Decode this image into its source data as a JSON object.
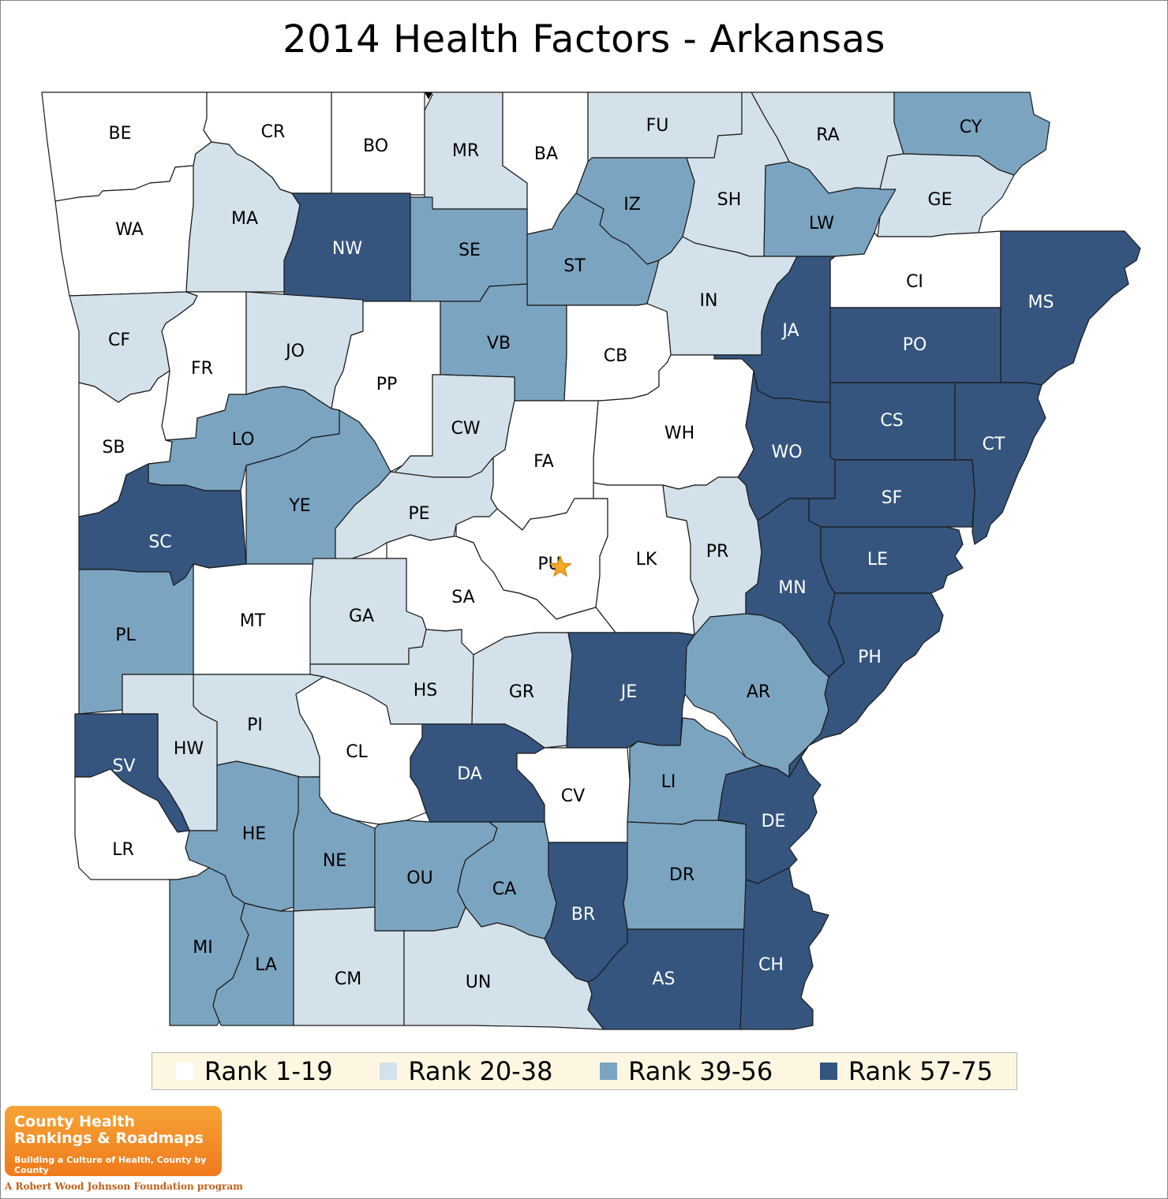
{
  "title": "2014 Health Factors - Arkansas",
  "colors": {
    "rank_1_19": "#ffffff",
    "rank_20_38": "#d3e1ea",
    "rank_39_56": "#7ba4c0",
    "rank_57_75": "#35557f"
  },
  "legend": [
    {
      "label": "Rank 1-19",
      "class": "rank_1_19"
    },
    {
      "label": "Rank 20-38",
      "class": "rank_20_38"
    },
    {
      "label": "Rank 39-56",
      "class": "rank_39_56"
    },
    {
      "label": "Rank 57-75",
      "class": "rank_57_75"
    }
  ],
  "counties": [
    {
      "abbr": "BE",
      "rank_group": "rank_1_19"
    },
    {
      "abbr": "CR",
      "rank_group": "rank_1_19"
    },
    {
      "abbr": "BO",
      "rank_group": "rank_1_19"
    },
    {
      "abbr": "MR",
      "rank_group": "rank_20_38"
    },
    {
      "abbr": "BA",
      "rank_group": "rank_1_19"
    },
    {
      "abbr": "FU",
      "rank_group": "rank_20_38"
    },
    {
      "abbr": "RA",
      "rank_group": "rank_20_38"
    },
    {
      "abbr": "CY",
      "rank_group": "rank_39_56"
    },
    {
      "abbr": "WA",
      "rank_group": "rank_1_19"
    },
    {
      "abbr": "MA",
      "rank_group": "rank_20_38"
    },
    {
      "abbr": "NW",
      "rank_group": "rank_57_75"
    },
    {
      "abbr": "SE",
      "rank_group": "rank_39_56"
    },
    {
      "abbr": "IZ",
      "rank_group": "rank_39_56"
    },
    {
      "abbr": "SH",
      "rank_group": "rank_20_38"
    },
    {
      "abbr": "LW",
      "rank_group": "rank_39_56"
    },
    {
      "abbr": "GE",
      "rank_group": "rank_20_38"
    },
    {
      "abbr": "ST",
      "rank_group": "rank_39_56"
    },
    {
      "abbr": "CI",
      "rank_group": "rank_1_19"
    },
    {
      "abbr": "MS",
      "rank_group": "rank_57_75"
    },
    {
      "abbr": "IN",
      "rank_group": "rank_20_38"
    },
    {
      "abbr": "JA",
      "rank_group": "rank_57_75"
    },
    {
      "abbr": "CF",
      "rank_group": "rank_20_38"
    },
    {
      "abbr": "FR",
      "rank_group": "rank_1_19"
    },
    {
      "abbr": "JO",
      "rank_group": "rank_20_38"
    },
    {
      "abbr": "PP",
      "rank_group": "rank_1_19"
    },
    {
      "abbr": "VB",
      "rank_group": "rank_39_56"
    },
    {
      "abbr": "CB",
      "rank_group": "rank_1_19"
    },
    {
      "abbr": "PO",
      "rank_group": "rank_57_75"
    },
    {
      "abbr": "CW",
      "rank_group": "rank_20_38"
    },
    {
      "abbr": "WH",
      "rank_group": "rank_1_19"
    },
    {
      "abbr": "CS",
      "rank_group": "rank_57_75"
    },
    {
      "abbr": "CT",
      "rank_group": "rank_57_75"
    },
    {
      "abbr": "SB",
      "rank_group": "rank_1_19"
    },
    {
      "abbr": "LO",
      "rank_group": "rank_39_56"
    },
    {
      "abbr": "FA",
      "rank_group": "rank_1_19"
    },
    {
      "abbr": "WO",
      "rank_group": "rank_57_75"
    },
    {
      "abbr": "YE",
      "rank_group": "rank_39_56"
    },
    {
      "abbr": "SF",
      "rank_group": "rank_57_75"
    },
    {
      "abbr": "PE",
      "rank_group": "rank_20_38"
    },
    {
      "abbr": "SC",
      "rank_group": "rank_57_75"
    },
    {
      "abbr": "PU",
      "rank_group": "rank_1_19"
    },
    {
      "abbr": "LK",
      "rank_group": "rank_1_19"
    },
    {
      "abbr": "PR",
      "rank_group": "rank_20_38"
    },
    {
      "abbr": "LE",
      "rank_group": "rank_57_75"
    },
    {
      "abbr": "MN",
      "rank_group": "rank_57_75"
    },
    {
      "abbr": "SA",
      "rank_group": "rank_1_19"
    },
    {
      "abbr": "MT",
      "rank_group": "rank_1_19"
    },
    {
      "abbr": "GA",
      "rank_group": "rank_20_38"
    },
    {
      "abbr": "PL",
      "rank_group": "rank_39_56"
    },
    {
      "abbr": "PH",
      "rank_group": "rank_57_75"
    },
    {
      "abbr": "HS",
      "rank_group": "rank_20_38"
    },
    {
      "abbr": "GR",
      "rank_group": "rank_20_38"
    },
    {
      "abbr": "JE",
      "rank_group": "rank_57_75"
    },
    {
      "abbr": "AR",
      "rank_group": "rank_39_56"
    },
    {
      "abbr": "PI",
      "rank_group": "rank_20_38"
    },
    {
      "abbr": "CL",
      "rank_group": "rank_1_19"
    },
    {
      "abbr": "HW",
      "rank_group": "rank_20_38"
    },
    {
      "abbr": "SV",
      "rank_group": "rank_57_75"
    },
    {
      "abbr": "DA",
      "rank_group": "rank_57_75"
    },
    {
      "abbr": "LI",
      "rank_group": "rank_39_56"
    },
    {
      "abbr": "CV",
      "rank_group": "rank_1_19"
    },
    {
      "abbr": "DE",
      "rank_group": "rank_57_75"
    },
    {
      "abbr": "HE",
      "rank_group": "rank_39_56"
    },
    {
      "abbr": "NE",
      "rank_group": "rank_39_56"
    },
    {
      "abbr": "LR",
      "rank_group": "rank_1_19"
    },
    {
      "abbr": "OU",
      "rank_group": "rank_39_56"
    },
    {
      "abbr": "CA",
      "rank_group": "rank_39_56"
    },
    {
      "abbr": "DR",
      "rank_group": "rank_39_56"
    },
    {
      "abbr": "BR",
      "rank_group": "rank_57_75"
    },
    {
      "abbr": "MI",
      "rank_group": "rank_39_56"
    },
    {
      "abbr": "LA",
      "rank_group": "rank_39_56"
    },
    {
      "abbr": "CM",
      "rank_group": "rank_20_38"
    },
    {
      "abbr": "UN",
      "rank_group": "rank_20_38"
    },
    {
      "abbr": "AS",
      "rank_group": "rank_57_75"
    },
    {
      "abbr": "CH",
      "rank_group": "rank_57_75"
    }
  ],
  "capital_marker": {
    "county": "PU",
    "icon": "star-icon",
    "color": "#f5a623"
  },
  "logo": {
    "name": "County Health Rankings & Roadmaps",
    "tagline": "Building a Culture of Health, County by County",
    "program": "A Robert Wood Johnson Foundation program"
  }
}
